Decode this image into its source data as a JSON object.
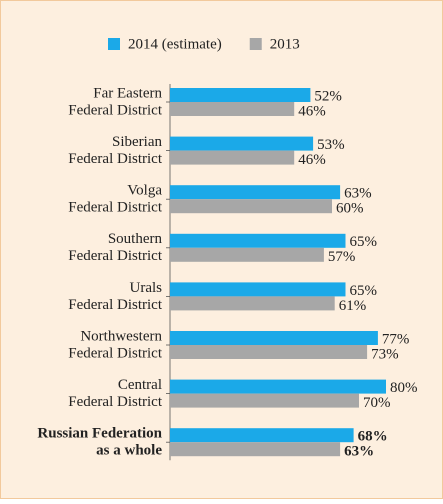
{
  "chart_data": {
    "type": "bar",
    "orientation": "horizontal",
    "categories": [
      [
        "Far Eastern",
        "Federal District"
      ],
      [
        "Siberian",
        "Federal District"
      ],
      [
        "Volga",
        "Federal District"
      ],
      [
        "Southern",
        "Federal District"
      ],
      [
        "Urals",
        "Federal District"
      ],
      [
        "Northwestern",
        "Federal District"
      ],
      [
        "Central",
        "Federal District"
      ],
      [
        "Russian Federation",
        "as a whole"
      ]
    ],
    "series": [
      {
        "name": "2014 (estimate)",
        "color": "#1ba9e8",
        "values": [
          52,
          53,
          63,
          65,
          65,
          77,
          80,
          68
        ],
        "value_labels": [
          "52%",
          "53%",
          "63%",
          "65%",
          "65%",
          "77%",
          "80%",
          "68%"
        ]
      },
      {
        "name": "2013",
        "color": "#a7a7a7",
        "values": [
          46,
          46,
          60,
          57,
          61,
          73,
          70,
          63
        ],
        "value_labels": [
          "46%",
          "46%",
          "60%",
          "57%",
          "61%",
          "73%",
          "70%",
          "63%"
        ]
      }
    ],
    "legend": "top"
  }
}
